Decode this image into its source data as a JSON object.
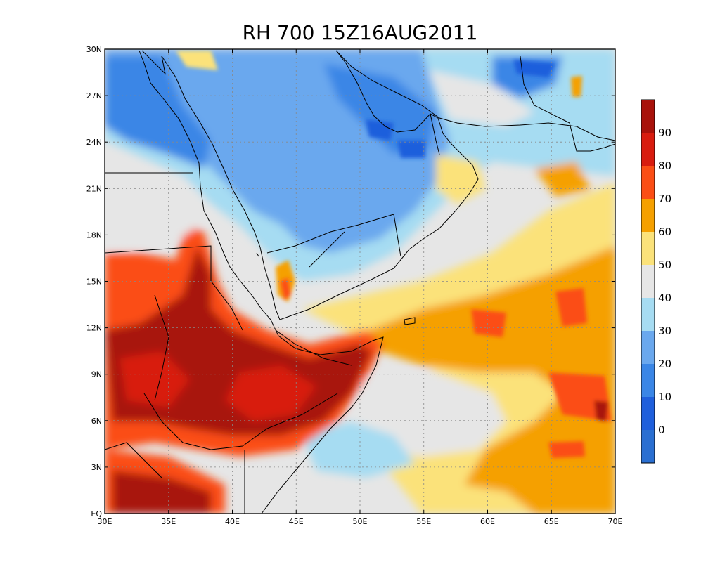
{
  "title": "RH 700 15Z16AUG2011",
  "map": {
    "lon_range": [
      30,
      70
    ],
    "lat_range": [
      0,
      30
    ],
    "x_ticks": [
      {
        "v": 30,
        "label": "30E"
      },
      {
        "v": 35,
        "label": "35E"
      },
      {
        "v": 40,
        "label": "40E"
      },
      {
        "v": 45,
        "label": "45E"
      },
      {
        "v": 50,
        "label": "50E"
      },
      {
        "v": 55,
        "label": "55E"
      },
      {
        "v": 60,
        "label": "60E"
      },
      {
        "v": 65,
        "label": "65E"
      },
      {
        "v": 70,
        "label": "70E"
      }
    ],
    "y_ticks": [
      {
        "v": 0,
        "label": "EQ"
      },
      {
        "v": 3,
        "label": "3N"
      },
      {
        "v": 6,
        "label": "6N"
      },
      {
        "v": 9,
        "label": "9N"
      },
      {
        "v": 12,
        "label": "12N"
      },
      {
        "v": 15,
        "label": "15N"
      },
      {
        "v": 18,
        "label": "18N"
      },
      {
        "v": 21,
        "label": "21N"
      },
      {
        "v": 24,
        "label": "24N"
      },
      {
        "v": 27,
        "label": "27N"
      },
      {
        "v": 30,
        "label": "30N"
      }
    ],
    "grid": "dotted"
  },
  "colorbar": {
    "orientation": "vertical",
    "colors": [
      "#2a6fd1",
      "#1f5fdc",
      "#3a86e6",
      "#6aa8ee",
      "#a6dcf2",
      "#e6e6e6",
      "#fbe27a",
      "#f5a000",
      "#fb4e15",
      "#d81c0f",
      "#a8120b"
    ],
    "tick_labels": [
      "0",
      "10",
      "20",
      "30",
      "40",
      "50",
      "60",
      "70",
      "80",
      "90"
    ]
  }
}
